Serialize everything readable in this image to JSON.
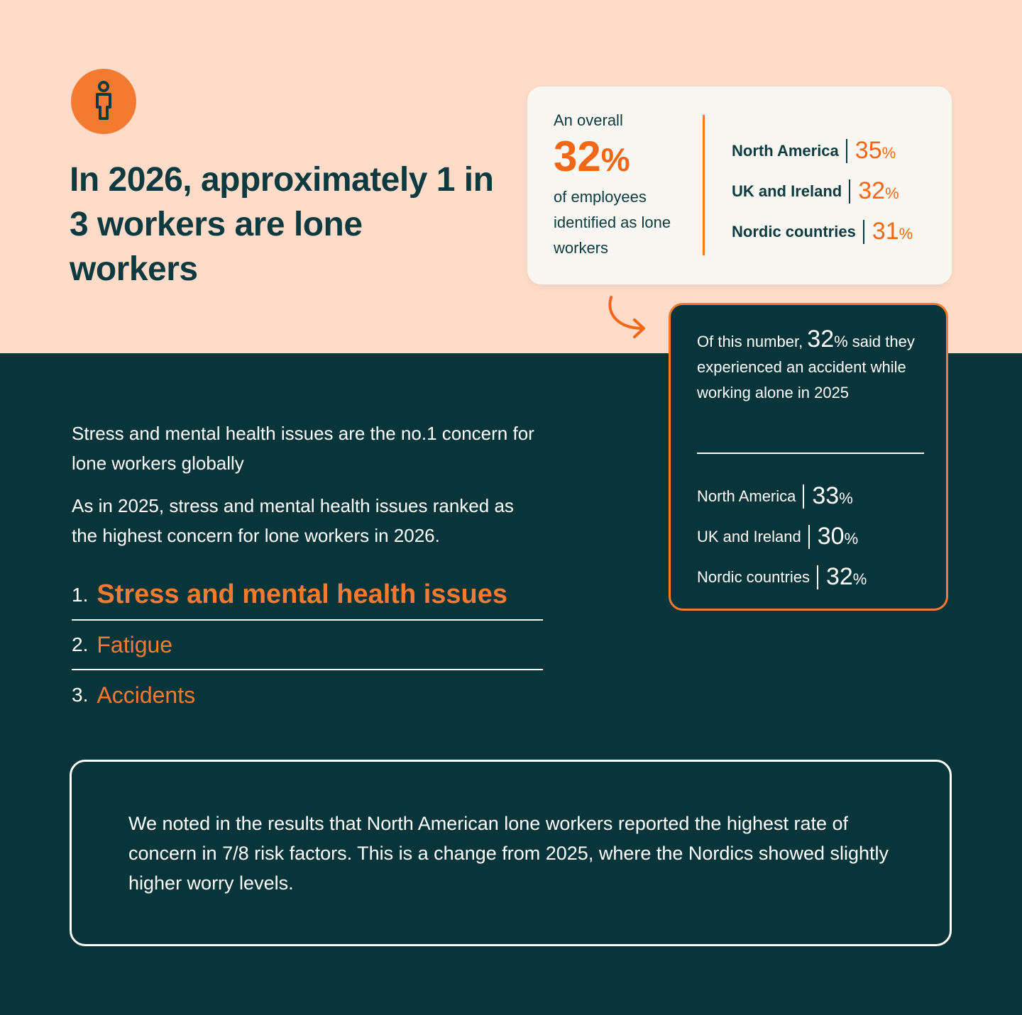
{
  "colors": {
    "peach": "#ffdcc9",
    "teal": "#08353a",
    "orange": "#f47a32",
    "card": "#f9f7f1"
  },
  "icons": {
    "badge": "person-icon",
    "pointer": "curved-arrow-icon"
  },
  "headline": "In 2026, approximately 1 in 3 workers are lone workers",
  "overall_card": {
    "intro": "An overall",
    "value": "32",
    "unit": "%",
    "description": "of employees identified as lone workers",
    "regions": [
      {
        "name": "North America",
        "value": "35",
        "unit": "%"
      },
      {
        "name": "UK and Ireland",
        "value": "32",
        "unit": "%"
      },
      {
        "name": "Nordic countries",
        "value": "31",
        "unit": "%"
      }
    ]
  },
  "accident_card": {
    "prefix": "Of this number, ",
    "value": "32",
    "suffix": "% said they experienced an accident while working alone in 2025",
    "regions": [
      {
        "name": "North America",
        "value": "33",
        "unit": "%"
      },
      {
        "name": "UK and Ireland",
        "value": "30",
        "unit": "%"
      },
      {
        "name": "Nordic countries",
        "value": "32",
        "unit": "%"
      }
    ]
  },
  "concerns": {
    "lead": "Stress and mental health issues are the no.1 concern for lone workers globally",
    "body": "As in 2025, stress and mental health issues ranked as the highest concern for lone workers in 2026.",
    "ranking": [
      {
        "number": "1.",
        "label": "Stress and mental health issues"
      },
      {
        "number": "2.",
        "label": "Fatigue"
      },
      {
        "number": "3.",
        "label": "Accidents"
      }
    ]
  },
  "note": "We noted in the results that North American lone workers reported the highest rate of concern in 7/8 risk factors. This is a change from 2025, where the Nordics showed slightly higher worry levels."
}
